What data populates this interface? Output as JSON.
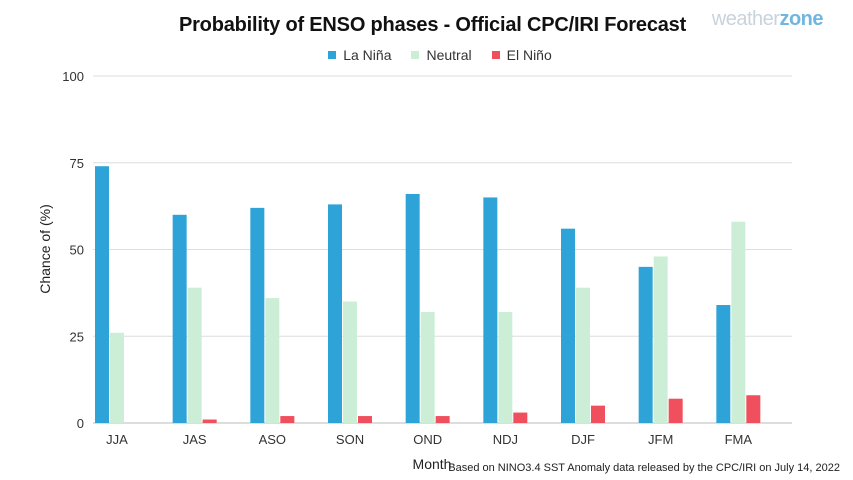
{
  "brand": {
    "logo_part1": "weather",
    "logo_part2": "zone"
  },
  "note": "Based on NINO3.4 SST Anomaly data released by the CPC/IRI on July 14, 2022",
  "colors": {
    "la_nina": "#2ea3d8",
    "neutral": "#cdeed6",
    "el_nino": "#f04f5e",
    "grid": "#dedede"
  },
  "chart_data": {
    "type": "bar",
    "title": "Probability of ENSO phases - Official CPC/IRI Forecast",
    "xlabel": "Month",
    "ylabel": "Chance of (%)",
    "ylim": [
      0,
      100
    ],
    "yticks": [
      0,
      25,
      50,
      75,
      100
    ],
    "grid": true,
    "legend_position": "top-center",
    "categories": [
      "JJA",
      "JAS",
      "ASO",
      "SON",
      "OND",
      "NDJ",
      "DJF",
      "JFM",
      "FMA"
    ],
    "series": [
      {
        "name": "La Niña",
        "color": "#2ea3d8",
        "values": [
          74,
          60,
          62,
          63,
          66,
          65,
          56,
          45,
          34
        ]
      },
      {
        "name": "Neutral",
        "color": "#cdeed6",
        "values": [
          26,
          39,
          36,
          35,
          32,
          32,
          39,
          48,
          58
        ]
      },
      {
        "name": "El Niño",
        "color": "#f04f5e",
        "values": [
          0,
          1,
          2,
          2,
          2,
          3,
          5,
          7,
          8
        ]
      }
    ]
  }
}
